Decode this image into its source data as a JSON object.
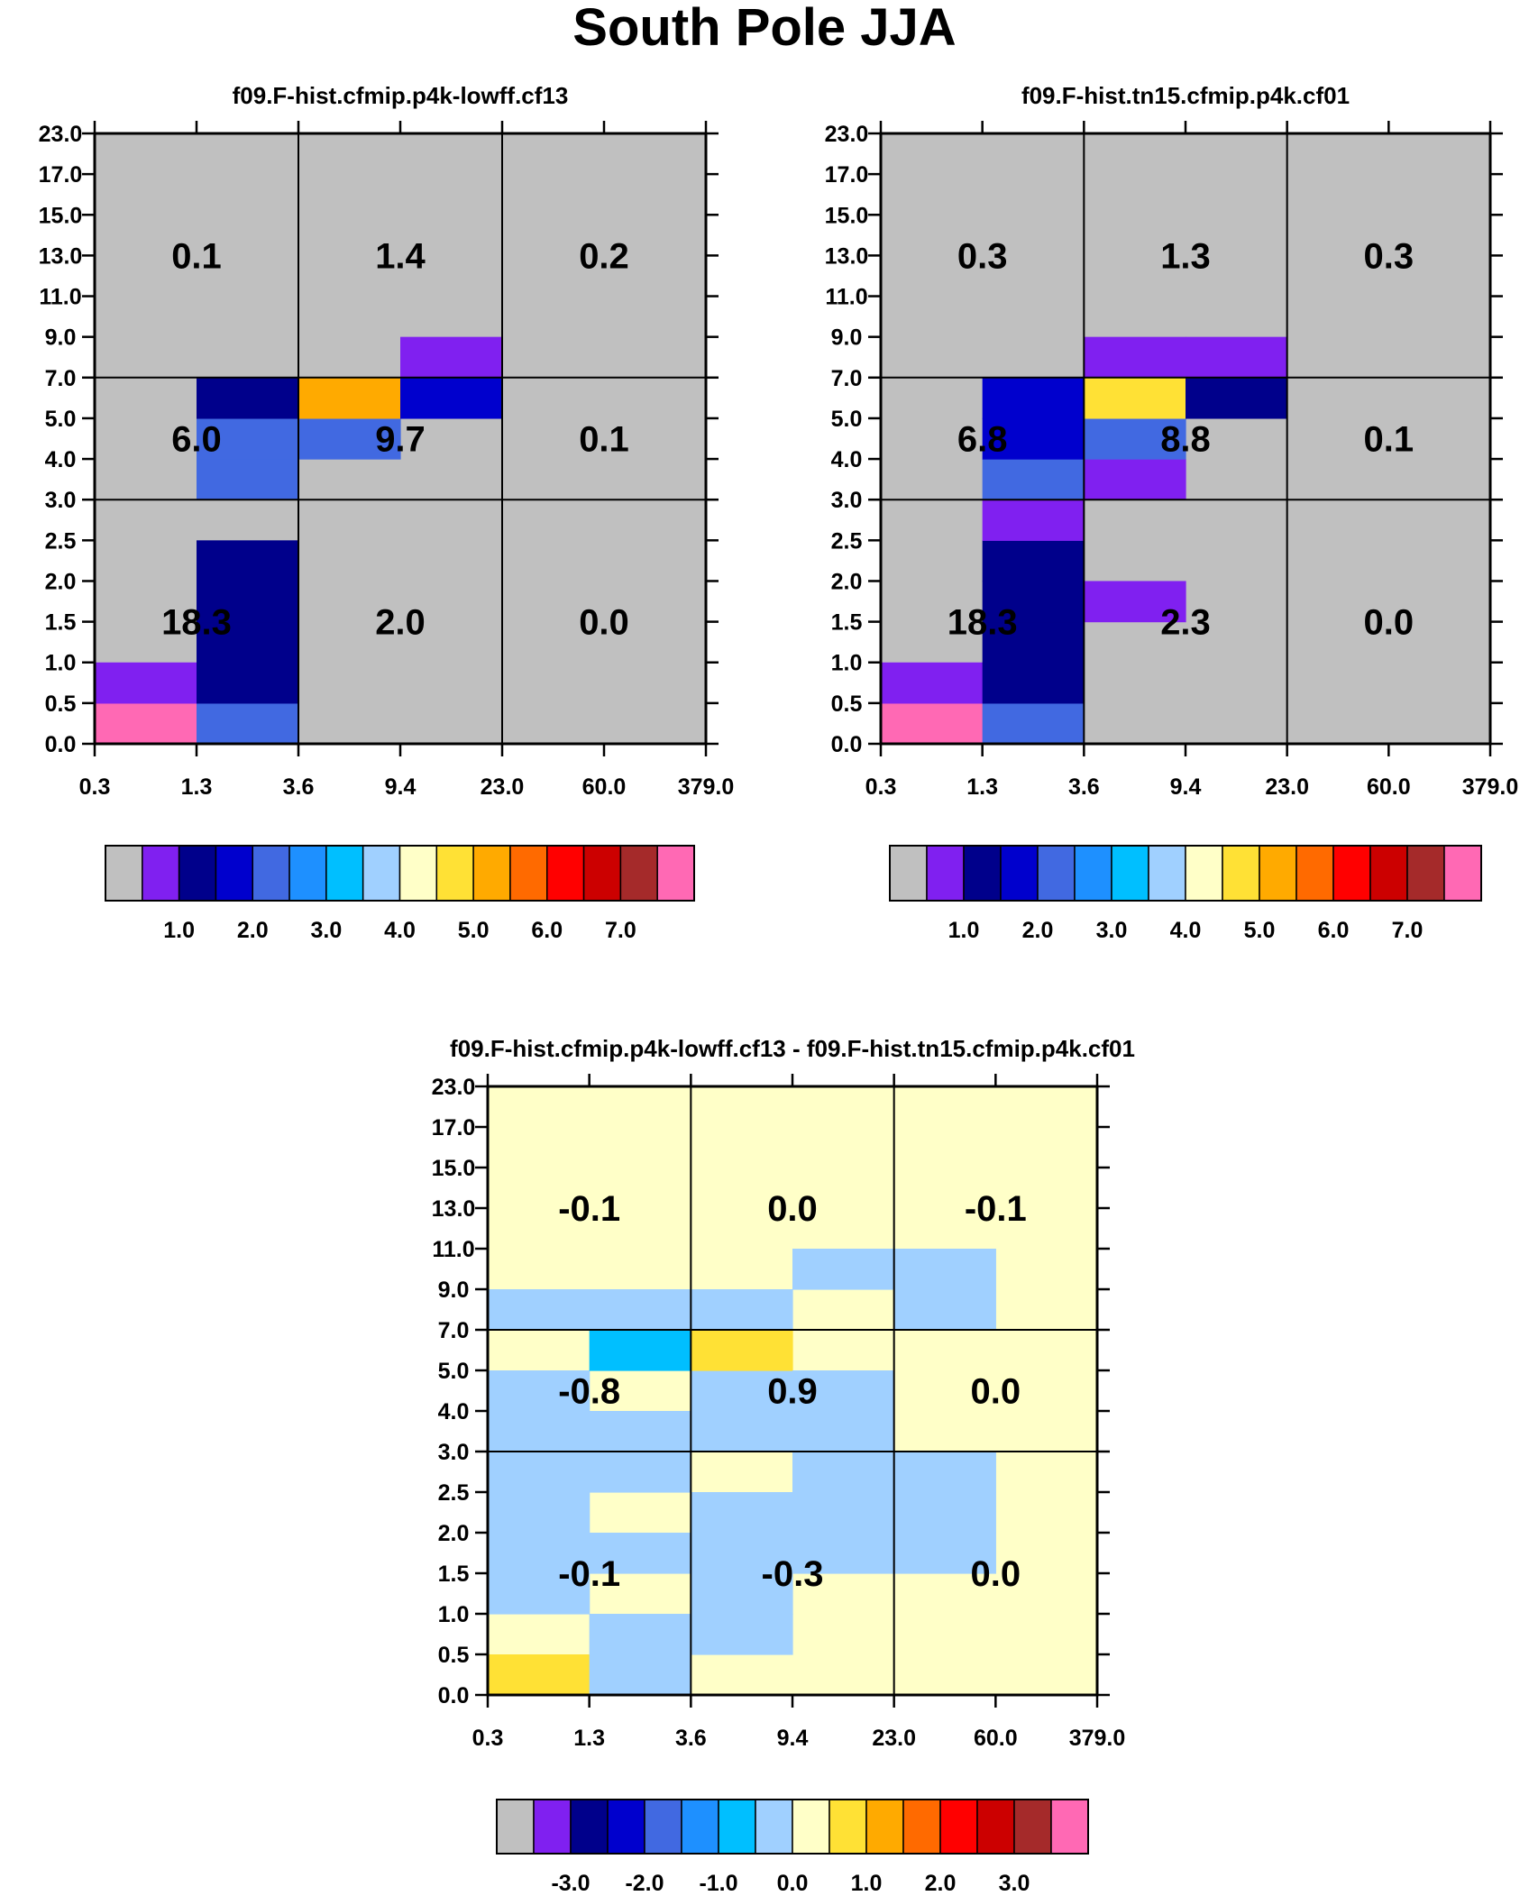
{
  "title": "South Pole JJA",
  "colors": {
    "gray": "#C0C0C0",
    "abs_palette": [
      "#C0C0C0",
      "#8020F0",
      "#00008B",
      "#0000CD",
      "#4169E1",
      "#1E90FF",
      "#00BFFF",
      "#A0D0FF",
      "#FFFFC8",
      "#FFE135",
      "#FFAA00",
      "#FF6A00",
      "#FF0000",
      "#CC0000",
      "#A52A2A",
      "#FF69B4"
    ],
    "diff_palette": [
      "#C0C0C0",
      "#8020F0",
      "#00008B",
      "#0000CD",
      "#4169E1",
      "#1E90FF",
      "#00BFFF",
      "#A0D0FF",
      "#FFFFC8",
      "#FFE135",
      "#FFAA00",
      "#FF6A00",
      "#FF0000",
      "#CC0000",
      "#A52A2A",
      "#FF69B4"
    ]
  },
  "chart_data": [
    {
      "type": "heatmap",
      "title": "f09.F-hist.cfmip.p4k-lowff.cf13",
      "x_ticks": [
        "0.3",
        "1.3",
        "3.6",
        "9.4",
        "23.0",
        "60.0",
        "379.0"
      ],
      "y_ticks": [
        "0.0",
        "0.5",
        "1.0",
        "1.5",
        "2.0",
        "2.5",
        "3.0",
        "4.0",
        "5.0",
        "7.0",
        "9.0",
        "11.0",
        "13.0",
        "15.0",
        "17.0",
        "23.0"
      ],
      "background_index": 0,
      "cells": [
        {
          "col": 0,
          "row": 0,
          "c": 15
        },
        {
          "col": 0,
          "row": 1,
          "c": 1
        },
        {
          "col": 1,
          "row": 0,
          "c": 4
        },
        {
          "col": 1,
          "row": 1,
          "c": 2
        },
        {
          "col": 1,
          "row": 2,
          "c": 2
        },
        {
          "col": 1,
          "row": 3,
          "c": 2
        },
        {
          "col": 1,
          "row": 4,
          "c": 2
        },
        {
          "col": 1,
          "row": 6,
          "c": 4
        },
        {
          "col": 1,
          "row": 7,
          "c": 4
        },
        {
          "col": 1,
          "row": 8,
          "c": 2
        },
        {
          "col": 2,
          "row": 7,
          "c": 4
        },
        {
          "col": 2,
          "row": 8,
          "c": 10
        },
        {
          "col": 3,
          "row": 8,
          "c": 3
        },
        {
          "col": 3,
          "row": 9,
          "c": 1
        }
      ],
      "box_labels": [
        {
          "bx": 0,
          "by": 0,
          "text": "18.3"
        },
        {
          "bx": 1,
          "by": 0,
          "text": "2.0"
        },
        {
          "bx": 2,
          "by": 0,
          "text": "0.0"
        },
        {
          "bx": 0,
          "by": 1,
          "text": "6.0"
        },
        {
          "bx": 1,
          "by": 1,
          "text": "9.7"
        },
        {
          "bx": 2,
          "by": 1,
          "text": "0.1"
        },
        {
          "bx": 0,
          "by": 2,
          "text": "0.1"
        },
        {
          "bx": 1,
          "by": 2,
          "text": "1.4"
        },
        {
          "bx": 2,
          "by": 2,
          "text": "0.2"
        }
      ],
      "colorbar_labels": [
        "1.0",
        "2.0",
        "3.0",
        "4.0",
        "5.0",
        "6.0",
        "7.0"
      ]
    },
    {
      "type": "heatmap",
      "title": "f09.F-hist.tn15.cfmip.p4k.cf01",
      "x_ticks": [
        "0.3",
        "1.3",
        "3.6",
        "9.4",
        "23.0",
        "60.0",
        "379.0"
      ],
      "y_ticks": [
        "0.0",
        "0.5",
        "1.0",
        "1.5",
        "2.0",
        "2.5",
        "3.0",
        "4.0",
        "5.0",
        "7.0",
        "9.0",
        "11.0",
        "13.0",
        "15.0",
        "17.0",
        "23.0"
      ],
      "background_index": 0,
      "cells": [
        {
          "col": 0,
          "row": 0,
          "c": 15
        },
        {
          "col": 0,
          "row": 1,
          "c": 1
        },
        {
          "col": 1,
          "row": 0,
          "c": 4
        },
        {
          "col": 1,
          "row": 1,
          "c": 2
        },
        {
          "col": 1,
          "row": 2,
          "c": 2
        },
        {
          "col": 1,
          "row": 3,
          "c": 2
        },
        {
          "col": 1,
          "row": 4,
          "c": 2
        },
        {
          "col": 1,
          "row": 5,
          "c": 1
        },
        {
          "col": 1,
          "row": 6,
          "c": 4
        },
        {
          "col": 1,
          "row": 7,
          "c": 3
        },
        {
          "col": 1,
          "row": 8,
          "c": 3
        },
        {
          "col": 2,
          "row": 3,
          "c": 1
        },
        {
          "col": 2,
          "row": 6,
          "c": 1
        },
        {
          "col": 2,
          "row": 7,
          "c": 4
        },
        {
          "col": 2,
          "row": 8,
          "c": 9
        },
        {
          "col": 2,
          "row": 9,
          "c": 1
        },
        {
          "col": 3,
          "row": 8,
          "c": 2
        },
        {
          "col": 3,
          "row": 9,
          "c": 1
        }
      ],
      "box_labels": [
        {
          "bx": 0,
          "by": 0,
          "text": "18.3"
        },
        {
          "bx": 1,
          "by": 0,
          "text": "2.3"
        },
        {
          "bx": 2,
          "by": 0,
          "text": "0.0"
        },
        {
          "bx": 0,
          "by": 1,
          "text": "6.8"
        },
        {
          "bx": 1,
          "by": 1,
          "text": "8.8"
        },
        {
          "bx": 2,
          "by": 1,
          "text": "0.1"
        },
        {
          "bx": 0,
          "by": 2,
          "text": "0.3"
        },
        {
          "bx": 1,
          "by": 2,
          "text": "1.3"
        },
        {
          "bx": 2,
          "by": 2,
          "text": "0.3"
        }
      ],
      "colorbar_labels": [
        "1.0",
        "2.0",
        "3.0",
        "4.0",
        "5.0",
        "6.0",
        "7.0"
      ]
    },
    {
      "type": "heatmap",
      "title": "f09.F-hist.cfmip.p4k-lowff.cf13 - f09.F-hist.tn15.cfmip.p4k.cf01",
      "x_ticks": [
        "0.3",
        "1.3",
        "3.6",
        "9.4",
        "23.0",
        "60.0",
        "379.0"
      ],
      "y_ticks": [
        "0.0",
        "0.5",
        "1.0",
        "1.5",
        "2.0",
        "2.5",
        "3.0",
        "4.0",
        "5.0",
        "7.0",
        "9.0",
        "11.0",
        "13.0",
        "15.0",
        "17.0",
        "23.0"
      ],
      "background_index": 8,
      "cells": [
        {
          "col": 0,
          "row": 0,
          "c": 9
        },
        {
          "col": 0,
          "row": 2,
          "c": 7
        },
        {
          "col": 0,
          "row": 3,
          "c": 7
        },
        {
          "col": 0,
          "row": 4,
          "c": 7
        },
        {
          "col": 0,
          "row": 5,
          "c": 7
        },
        {
          "col": 0,
          "row": 6,
          "c": 7
        },
        {
          "col": 0,
          "row": 7,
          "c": 7
        },
        {
          "col": 0,
          "row": 9,
          "c": 7
        },
        {
          "col": 1,
          "row": 0,
          "c": 7
        },
        {
          "col": 1,
          "row": 1,
          "c": 7
        },
        {
          "col": 1,
          "row": 3,
          "c": 7
        },
        {
          "col": 1,
          "row": 5,
          "c": 7
        },
        {
          "col": 1,
          "row": 6,
          "c": 7
        },
        {
          "col": 1,
          "row": 8,
          "c": 6
        },
        {
          "col": 1,
          "row": 9,
          "c": 7
        },
        {
          "col": 2,
          "row": 1,
          "c": 7
        },
        {
          "col": 2,
          "row": 2,
          "c": 7
        },
        {
          "col": 2,
          "row": 3,
          "c": 7
        },
        {
          "col": 2,
          "row": 4,
          "c": 7
        },
        {
          "col": 2,
          "row": 6,
          "c": 7
        },
        {
          "col": 2,
          "row": 7,
          "c": 7
        },
        {
          "col": 2,
          "row": 8,
          "c": 9
        },
        {
          "col": 2,
          "row": 9,
          "c": 7
        },
        {
          "col": 3,
          "row": 3,
          "c": 7
        },
        {
          "col": 3,
          "row": 4,
          "c": 7
        },
        {
          "col": 3,
          "row": 5,
          "c": 7
        },
        {
          "col": 3,
          "row": 6,
          "c": 7
        },
        {
          "col": 3,
          "row": 7,
          "c": 7
        },
        {
          "col": 3,
          "row": 10,
          "c": 7
        },
        {
          "col": 4,
          "row": 3,
          "c": 7
        },
        {
          "col": 4,
          "row": 4,
          "c": 7
        },
        {
          "col": 4,
          "row": 5,
          "c": 7
        },
        {
          "col": 4,
          "row": 9,
          "c": 7
        },
        {
          "col": 4,
          "row": 10,
          "c": 7
        }
      ],
      "box_labels": [
        {
          "bx": 0,
          "by": 0,
          "text": "-0.1"
        },
        {
          "bx": 1,
          "by": 0,
          "text": "-0.3"
        },
        {
          "bx": 2,
          "by": 0,
          "text": "0.0"
        },
        {
          "bx": 0,
          "by": 1,
          "text": "-0.8"
        },
        {
          "bx": 1,
          "by": 1,
          "text": "0.9"
        },
        {
          "bx": 2,
          "by": 1,
          "text": "0.0"
        },
        {
          "bx": 0,
          "by": 2,
          "text": "-0.1"
        },
        {
          "bx": 1,
          "by": 2,
          "text": "0.0"
        },
        {
          "bx": 2,
          "by": 2,
          "text": "-0.1"
        }
      ],
      "colorbar_labels": [
        "-3.0",
        "-2.0",
        "-1.0",
        "0.0",
        "1.0",
        "2.0",
        "3.0"
      ]
    }
  ]
}
